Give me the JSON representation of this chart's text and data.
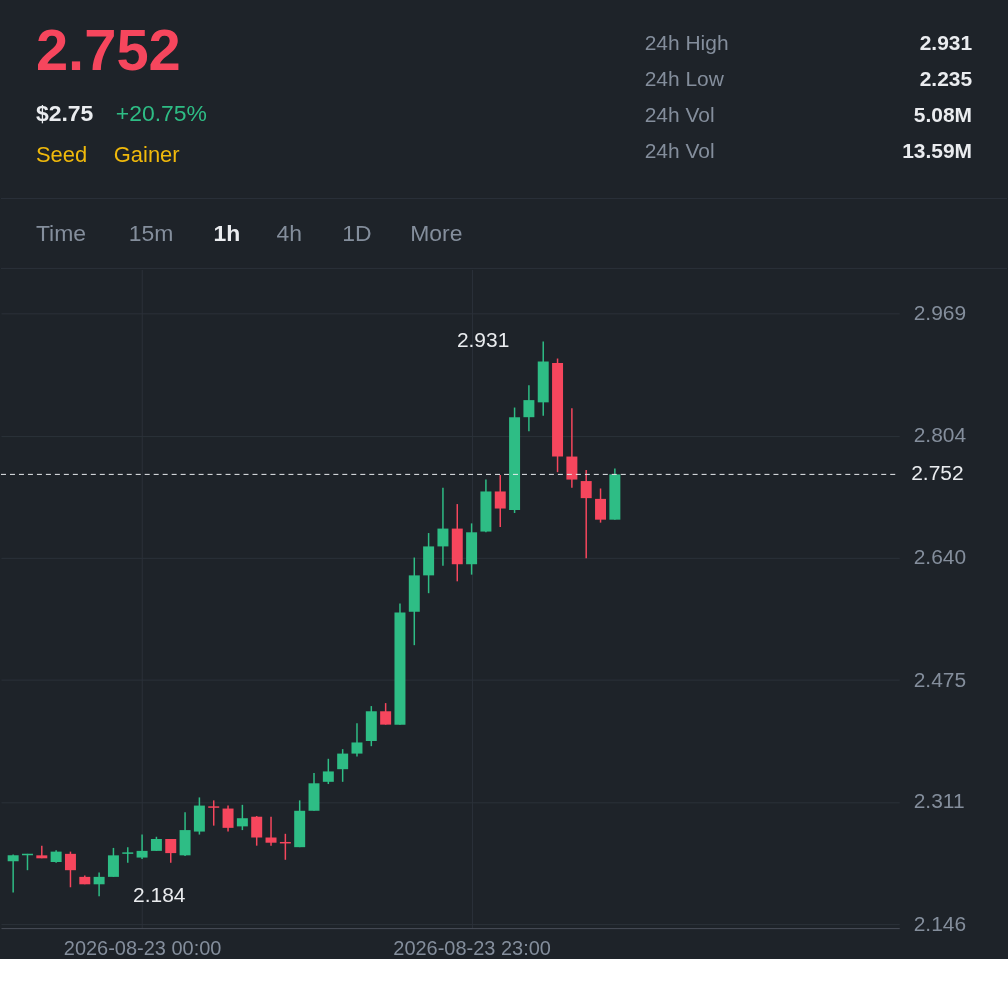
{
  "chart_data": {
    "type": "candlestick",
    "annotations": [
      "2.752",
      "$2.75",
      "+20.75%",
      "Seed",
      "Gainer",
      "24h High",
      "2.931",
      "24h Low",
      "2.235",
      "24h Vol",
      "5.08M",
      "24h Vol",
      "13.59M",
      "Time",
      "15m",
      "1h",
      "4h",
      "1D",
      "More",
      {
        "text": "2.931",
        "x": "2026-08-24T04:00",
        "y": 2.931
      },
      {
        "text": "2.184",
        "x": "2026-08-22T21:00",
        "y": 2.184
      }
    ],
    "x": [
      "2026-08-22T15:00",
      "2026-08-22T16:00",
      "2026-08-22T17:00",
      "2026-08-22T18:00",
      "2026-08-22T19:00",
      "2026-08-22T20:00",
      "2026-08-22T21:00",
      "2026-08-22T22:00",
      "2026-08-22T23:00",
      "2026-08-23T00:00",
      "2026-08-23T01:00",
      "2026-08-23T02:00",
      "2026-08-23T03:00",
      "2026-08-23T04:00",
      "2026-08-23T05:00",
      "2026-08-23T06:00",
      "2026-08-23T07:00",
      "2026-08-23T08:00",
      "2026-08-23T09:00",
      "2026-08-23T10:00",
      "2026-08-23T11:00",
      "2026-08-23T12:00",
      "2026-08-23T13:00",
      "2026-08-23T14:00",
      "2026-08-23T15:00",
      "2026-08-23T16:00",
      "2026-08-23T17:00",
      "2026-08-23T18:00",
      "2026-08-23T19:00",
      "2026-08-23T20:00",
      "2026-08-23T21:00",
      "2026-08-23T22:00",
      "2026-08-23T23:00",
      "2026-08-24T00:00",
      "2026-08-24T01:00",
      "2026-08-24T02:00",
      "2026-08-24T03:00",
      "2026-08-24T04:00",
      "2026-08-24T05:00",
      "2026-08-24T06:00",
      "2026-08-24T07:00",
      "2026-08-24T08:00",
      "2026-08-24T09:00"
    ],
    "ohlc": [
      [
        2.231,
        2.24,
        2.189,
        2.239
      ],
      [
        2.239,
        2.241,
        2.219,
        2.241
      ],
      [
        2.239,
        2.252,
        2.235,
        2.235
      ],
      [
        2.23,
        2.246,
        2.229,
        2.244
      ],
      [
        2.241,
        2.244,
        2.196,
        2.219
      ],
      [
        2.21,
        2.212,
        2.2,
        2.2
      ],
      [
        2.2,
        2.216,
        2.184,
        2.21
      ],
      [
        2.21,
        2.249,
        2.21,
        2.239
      ],
      [
        2.241,
        2.25,
        2.229,
        2.243
      ],
      [
        2.236,
        2.267,
        2.234,
        2.245
      ],
      [
        2.245,
        2.264,
        2.245,
        2.261
      ],
      [
        2.261,
        2.261,
        2.229,
        2.242
      ],
      [
        2.239,
        2.297,
        2.238,
        2.273
      ],
      [
        2.271,
        2.317,
        2.267,
        2.306
      ],
      [
        2.305,
        2.313,
        2.279,
        2.303
      ],
      [
        2.302,
        2.306,
        2.271,
        2.276
      ],
      [
        2.278,
        2.307,
        2.273,
        2.289
      ],
      [
        2.291,
        2.292,
        2.252,
        2.263
      ],
      [
        2.263,
        2.291,
        2.252,
        2.256
      ],
      [
        2.257,
        2.268,
        2.233,
        2.255
      ],
      [
        2.25,
        2.313,
        2.25,
        2.299
      ],
      [
        2.299,
        2.35,
        2.299,
        2.336
      ],
      [
        2.338,
        2.369,
        2.335,
        2.352
      ],
      [
        2.355,
        2.382,
        2.338,
        2.376
      ],
      [
        2.376,
        2.417,
        2.372,
        2.391
      ],
      [
        2.393,
        2.44,
        2.386,
        2.433
      ],
      [
        2.433,
        2.444,
        2.415,
        2.415
      ],
      [
        2.415,
        2.578,
        2.415,
        2.566
      ],
      [
        2.567,
        2.64,
        2.522,
        2.616
      ],
      [
        2.616,
        2.673,
        2.592,
        2.655
      ],
      [
        2.655,
        2.734,
        2.629,
        2.679
      ],
      [
        2.679,
        2.712,
        2.608,
        2.631
      ],
      [
        2.631,
        2.686,
        2.617,
        2.674
      ],
      [
        2.675,
        2.745,
        2.674,
        2.729
      ],
      [
        2.729,
        2.751,
        2.681,
        2.706
      ],
      [
        2.704,
        2.842,
        2.7,
        2.829
      ],
      [
        2.829,
        2.872,
        2.81,
        2.852
      ],
      [
        2.849,
        2.931,
        2.831,
        2.904
      ],
      [
        2.902,
        2.908,
        2.755,
        2.776
      ],
      [
        2.776,
        2.841,
        2.734,
        2.745
      ],
      [
        2.743,
        2.758,
        2.639,
        2.72
      ],
      [
        2.719,
        2.733,
        2.687,
        2.691
      ],
      [
        2.691,
        2.76,
        2.691,
        2.752
      ]
    ],
    "colors": [
      "#2ebd85",
      "#2ebd85",
      "#f6465d",
      "#2ebd85",
      "#f6465d",
      "#f6465d",
      "#2ebd85",
      "#2ebd85",
      "#2ebd85",
      "#2ebd85",
      "#2ebd85",
      "#f6465d",
      "#2ebd85",
      "#2ebd85",
      "#f6465d",
      "#f6465d",
      "#2ebd85",
      "#f6465d",
      "#f6465d",
      "#f6465d",
      "#2ebd85",
      "#2ebd85",
      "#2ebd85",
      "#2ebd85",
      "#2ebd85",
      "#2ebd85",
      "#f6465d",
      "#2ebd85",
      "#2ebd85",
      "#2ebd85",
      "#2ebd85",
      "#f6465d",
      "#2ebd85",
      "#2ebd85",
      "#f6465d",
      "#2ebd85",
      "#2ebd85",
      "#2ebd85",
      "#f6465d",
      "#f6465d",
      "#f6465d",
      "#f6465d",
      "#2ebd85"
    ],
    "xlim": [
      "2026-08-22T14:30",
      "2026-08-25T04:30"
    ],
    "xticks": [
      {
        "value": "2026-08-23T00:00",
        "label": "2026-08-23 00:00"
      },
      {
        "value": "2026-08-23T23:00",
        "label": "2026-08-23 23:00"
      }
    ],
    "ylim": [
      2.141,
      3.028
    ],
    "yticks": [
      2.146,
      2.311,
      2.475,
      {
        "value": 2.64,
        "label": "2.640"
      },
      2.804,
      2.969
    ],
    "ref_lines": [
      {
        "axis": "y",
        "value": 2.752,
        "label": "2.752",
        "line_style": "dashed"
      }
    ],
    "grid": true
  }
}
